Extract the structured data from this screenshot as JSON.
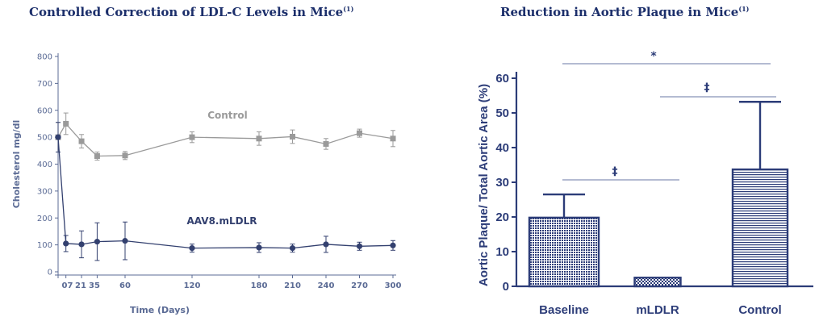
{
  "colors": {
    "title": "#1c2f6b",
    "axis_left": "#5b6b95",
    "control_line": "#9a9a9a",
    "treated_line": "#33406f",
    "bar": "#2c3c78"
  },
  "chart_data": [
    {
      "type": "line",
      "title": "Controlled Correction of LDL-C Levels in Mice",
      "title_sup": "(1)",
      "xlabel": "Time (Days)",
      "ylabel": "Cholesterol mg/dl",
      "xlim": [
        0,
        300
      ],
      "ylim": [
        0,
        800
      ],
      "x_ticks": [
        0,
        7,
        21,
        35,
        60,
        120,
        180,
        210,
        240,
        270,
        300
      ],
      "x_tick_labels": [
        "0",
        "7",
        "21",
        "35",
        "60",
        "120",
        "180",
        "210",
        "240",
        "270",
        "300"
      ],
      "y_ticks": [
        0,
        100,
        200,
        300,
        400,
        500,
        600,
        700,
        800
      ],
      "grid": false,
      "series": [
        {
          "name": "Control",
          "x": [
            0,
            7,
            21,
            35,
            60,
            120,
            180,
            210,
            240,
            270,
            300
          ],
          "y": [
            500,
            550,
            485,
            430,
            432,
            500,
            495,
            502,
            475,
            515,
            495
          ],
          "err": [
            55,
            40,
            25,
            15,
            15,
            20,
            25,
            25,
            20,
            15,
            30
          ]
        },
        {
          "name": "AAV8.mLDLR",
          "x": [
            0,
            7,
            21,
            35,
            60,
            120,
            180,
            210,
            240,
            270,
            300
          ],
          "y": [
            500,
            105,
            102,
            112,
            115,
            88,
            90,
            88,
            102,
            95,
            98
          ],
          "err": [
            55,
            30,
            50,
            70,
            70,
            15,
            18,
            15,
            30,
            15,
            18
          ]
        }
      ]
    },
    {
      "type": "bar",
      "title": "Reduction in Aortic Plaque in Mice",
      "title_sup": "(1)",
      "xlabel": "",
      "ylabel": "Aortic Plaque/ Total Aortic Area (%)",
      "ylim": [
        0,
        60
      ],
      "y_ticks": [
        0,
        10,
        20,
        30,
        40,
        50,
        60
      ],
      "categories": [
        "Baseline",
        "mLDLR",
        "Control"
      ],
      "values": [
        19.8,
        2.5,
        33.7
      ],
      "err": [
        6.7,
        0,
        19.5
      ],
      "significance": [
        {
          "from": "Baseline",
          "to": "Control",
          "label": "*"
        },
        {
          "from": "mLDLR",
          "to": "Control",
          "label": "‡"
        },
        {
          "from": "Baseline",
          "to": "mLDLR",
          "label": "‡"
        }
      ]
    }
  ]
}
